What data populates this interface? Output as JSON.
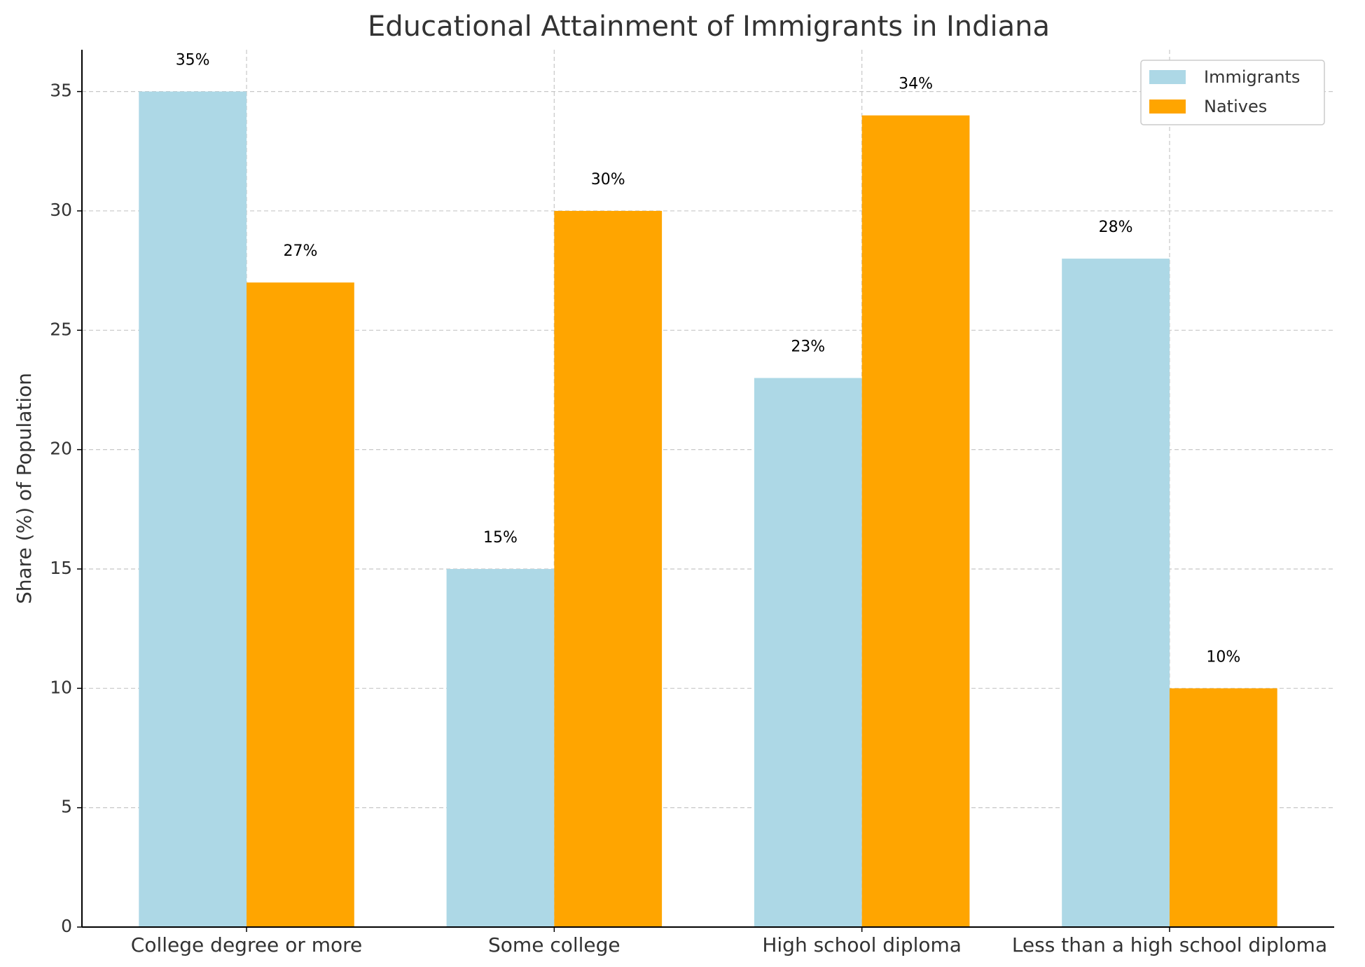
{
  "chart_data": {
    "type": "bar",
    "title": "Educational Attainment of Immigrants in Indiana",
    "y_label": "Share (%) of Population",
    "categories": [
      "College degree or more",
      "Some college",
      "High school diploma",
      "Less than a high school diploma"
    ],
    "series": [
      {
        "name": "Immigrants",
        "color": "#add8e6",
        "values": [
          35,
          15,
          23,
          28
        ],
        "value_labels": [
          "35%",
          "15%",
          "23%",
          "28%"
        ]
      },
      {
        "name": "Natives",
        "color": "#ffa500",
        "values": [
          27,
          30,
          34,
          10
        ],
        "value_labels": [
          "27%",
          "30%",
          "34%",
          "10%"
        ]
      }
    ],
    "ylim": [
      0,
      36.75
    ],
    "yticks": [
      0,
      5,
      10,
      15,
      20,
      25,
      30,
      35
    ],
    "grid": true,
    "legend": "upper-right"
  }
}
